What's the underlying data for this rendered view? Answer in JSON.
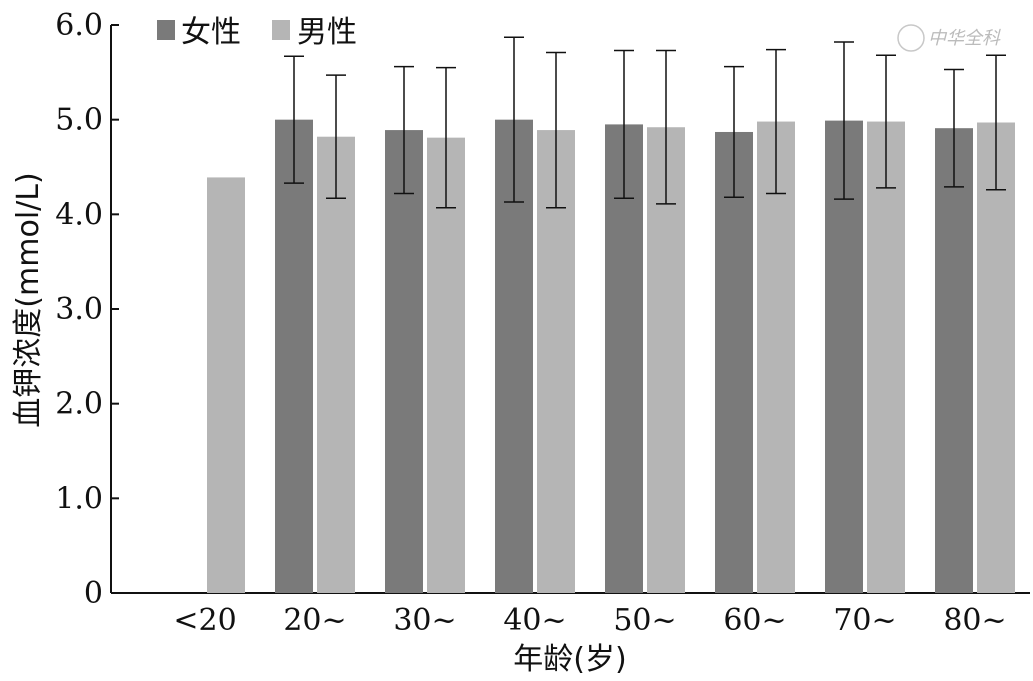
{
  "chart_data": {
    "type": "bar",
    "xlabel": "年龄(岁)",
    "ylabel": "血钾浓度(mmol/L)",
    "ylim": [
      0,
      6.0
    ],
    "yticks": [
      "0",
      "1.0",
      "2.0",
      "3.0",
      "4.0",
      "5.0",
      "6.0"
    ],
    "categories": [
      "<20",
      "20~",
      "30~",
      "40~",
      "50~",
      "60~",
      "70~",
      "80~"
    ],
    "legend_position": "top-left",
    "series": [
      {
        "name": "女性",
        "color": "#7a7a7a",
        "values": [
          null,
          5.0,
          4.89,
          5.0,
          4.95,
          4.87,
          4.99,
          4.91
        ],
        "error": [
          null,
          0.67,
          0.67,
          0.87,
          0.78,
          0.69,
          0.83,
          0.62
        ]
      },
      {
        "name": "男性",
        "color": "#b5b5b5",
        "values": [
          4.39,
          4.82,
          4.81,
          4.89,
          4.92,
          4.98,
          4.98,
          4.97
        ],
        "error": [
          null,
          0.65,
          0.74,
          0.82,
          0.81,
          0.76,
          0.7,
          0.71
        ]
      }
    ]
  },
  "watermark": {
    "text": "Ⓒ 中华全科"
  }
}
